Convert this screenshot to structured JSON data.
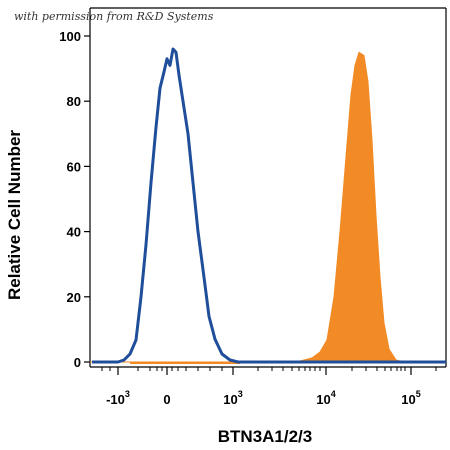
{
  "watermark": "with permission from R&D Systems",
  "chart_data": {
    "type": "histogram",
    "xlabel": "BTN3A1/2/3",
    "ylabel": "Relative Cell Number",
    "ylim": [
      0,
      100
    ],
    "y_ticks": [
      "0",
      "20",
      "40",
      "60",
      "80",
      "100"
    ],
    "x_ticks": [
      {
        "base": "-10",
        "exp": "3"
      },
      {
        "base": "0",
        "exp": ""
      },
      {
        "base": "10",
        "exp": "3"
      },
      {
        "base": "10",
        "exp": "4"
      },
      {
        "base": "10",
        "exp": "5"
      }
    ],
    "x_scale": "biexponential",
    "series": [
      {
        "style": "line",
        "color": "#1f4e9a",
        "peak_x": "0",
        "peak_y": 96
      },
      {
        "style": "filled",
        "color": "#f28a25",
        "peak_x": "2×10^4",
        "peak_y": 95
      }
    ]
  }
}
